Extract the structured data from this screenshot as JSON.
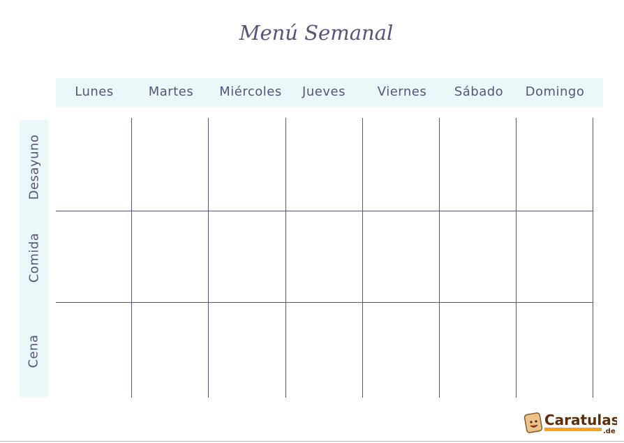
{
  "title": "Menú Semanal",
  "days": [
    "Lunes",
    "Martes",
    "Miércoles",
    "Jueves",
    "Viernes",
    "Sábado",
    "Domingo"
  ],
  "meals": [
    "Desayuno",
    "Comida",
    "Cena"
  ],
  "logo": {
    "text": "Caratulas",
    "suffix": ".de"
  },
  "colors": {
    "text": "#55557a",
    "band": "#eaf8f9",
    "logo_brown": "#5a2d0c",
    "logo_orange": "#f7a21b"
  }
}
